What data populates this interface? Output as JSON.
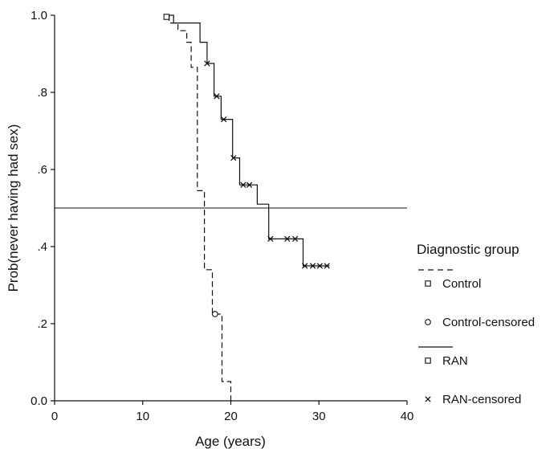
{
  "chart_data": {
    "type": "line",
    "subtype": "kaplan-meier step",
    "title": "",
    "xlabel": "Age (years)",
    "ylabel": "Prob(never having had sex)",
    "xlim": [
      0,
      40
    ],
    "ylim": [
      0,
      1
    ],
    "x_ticks": [
      {
        "value": 0,
        "label": "0"
      },
      {
        "value": 10,
        "label": "10"
      },
      {
        "value": 20,
        "label": "20"
      },
      {
        "value": 30,
        "label": "30"
      },
      {
        "value": 40,
        "label": "40"
      }
    ],
    "y_ticks": [
      {
        "value": 0,
        "label": "0.0"
      },
      {
        "value": 0.2,
        "label": ".2"
      },
      {
        "value": 0.4,
        "label": ".4"
      },
      {
        "value": 0.6,
        "label": ".6"
      },
      {
        "value": 0.8,
        "label": ".8"
      },
      {
        "value": 1.0,
        "label": "1.0"
      }
    ],
    "reference_lines": [
      {
        "y": 0.5
      }
    ],
    "grid": false,
    "legend": {
      "title": "Diagnostic group",
      "placement": "right",
      "entries": [
        {
          "label": "Control",
          "line": "dashed",
          "marker": "square"
        },
        {
          "label": "Control-censored",
          "line": "none",
          "marker": "circle"
        },
        {
          "label": "RAN",
          "line": "solid",
          "marker": "square"
        },
        {
          "label": "RAN-censored",
          "line": "none",
          "marker": "cross"
        }
      ]
    },
    "series": [
      {
        "name": "Control",
        "line": "dashed",
        "steps": [
          [
            13,
            1.0
          ],
          [
            13,
            0.98
          ],
          [
            14,
            0.98
          ],
          [
            14,
            0.96
          ],
          [
            15,
            0.96
          ],
          [
            15,
            0.93
          ],
          [
            15.5,
            0.93
          ],
          [
            15.5,
            0.865
          ],
          [
            16.2,
            0.865
          ],
          [
            16.2,
            0.545
          ],
          [
            17,
            0.545
          ],
          [
            17,
            0.34
          ],
          [
            17.9,
            0.34
          ],
          [
            17.9,
            0.225
          ],
          [
            19,
            0.225
          ],
          [
            19,
            0.05
          ],
          [
            20,
            0.05
          ],
          [
            20,
            0.0
          ]
        ]
      },
      {
        "name": "Control-censored",
        "marker": "circle",
        "points": [
          [
            18.2,
            0.225
          ]
        ]
      },
      {
        "name": "RAN",
        "line": "solid",
        "steps": [
          [
            12.7,
            1.0
          ],
          [
            13.5,
            1.0
          ],
          [
            13.5,
            0.98
          ],
          [
            16.5,
            0.98
          ],
          [
            16.5,
            0.93
          ],
          [
            17.3,
            0.93
          ],
          [
            17.3,
            0.875
          ],
          [
            18.1,
            0.875
          ],
          [
            18.1,
            0.79
          ],
          [
            18.9,
            0.79
          ],
          [
            18.9,
            0.73
          ],
          [
            20.2,
            0.73
          ],
          [
            20.2,
            0.63
          ],
          [
            21,
            0.63
          ],
          [
            21,
            0.56
          ],
          [
            23,
            0.56
          ],
          [
            23,
            0.51
          ],
          [
            24.3,
            0.51
          ],
          [
            24.3,
            0.42
          ],
          [
            28.2,
            0.42
          ],
          [
            28.2,
            0.35
          ],
          [
            31.2,
            0.35
          ]
        ]
      },
      {
        "name": "RAN-censored",
        "marker": "cross",
        "points": [
          [
            17.3,
            0.875
          ],
          [
            18.4,
            0.79
          ],
          [
            19.2,
            0.73
          ],
          [
            20.3,
            0.63
          ],
          [
            21.4,
            0.56
          ],
          [
            22.1,
            0.56
          ],
          [
            24.5,
            0.42
          ],
          [
            26.4,
            0.42
          ],
          [
            27.3,
            0.42
          ],
          [
            28.4,
            0.35
          ],
          [
            29.3,
            0.35
          ],
          [
            30.1,
            0.35
          ],
          [
            30.9,
            0.35
          ]
        ]
      }
    ]
  }
}
